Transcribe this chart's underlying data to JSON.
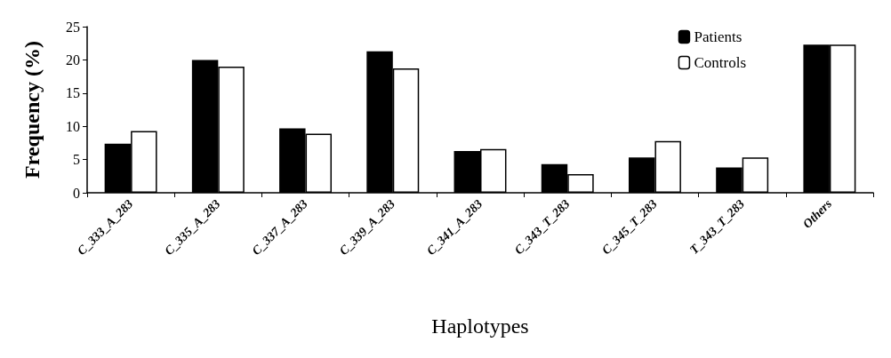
{
  "chart_data": {
    "type": "bar",
    "xlabel": "Haplotypes",
    "ylabel": "Frequency (%)",
    "categories": [
      "C_333_A_283",
      "C_335_A_283",
      "C_337_A_283",
      "C_339_A_283",
      "C_341_A_283",
      "C_343_T_283",
      "C_345_T_283",
      "T_343_T_283",
      "Others"
    ],
    "series": [
      {
        "name": "Patients",
        "color": "#000000",
        "values": [
          7.4,
          20.0,
          9.7,
          21.3,
          6.3,
          4.3,
          5.3,
          3.8,
          22.3
        ]
      },
      {
        "name": "Controls",
        "color": "#ffffff",
        "values": [
          9.3,
          19.0,
          8.9,
          18.7,
          6.6,
          2.8,
          7.8,
          5.3,
          22.3
        ]
      }
    ],
    "ylim": [
      0,
      25
    ],
    "yticks": [
      0,
      5,
      10,
      15,
      20,
      25
    ],
    "grid": false,
    "legend": "top right"
  }
}
